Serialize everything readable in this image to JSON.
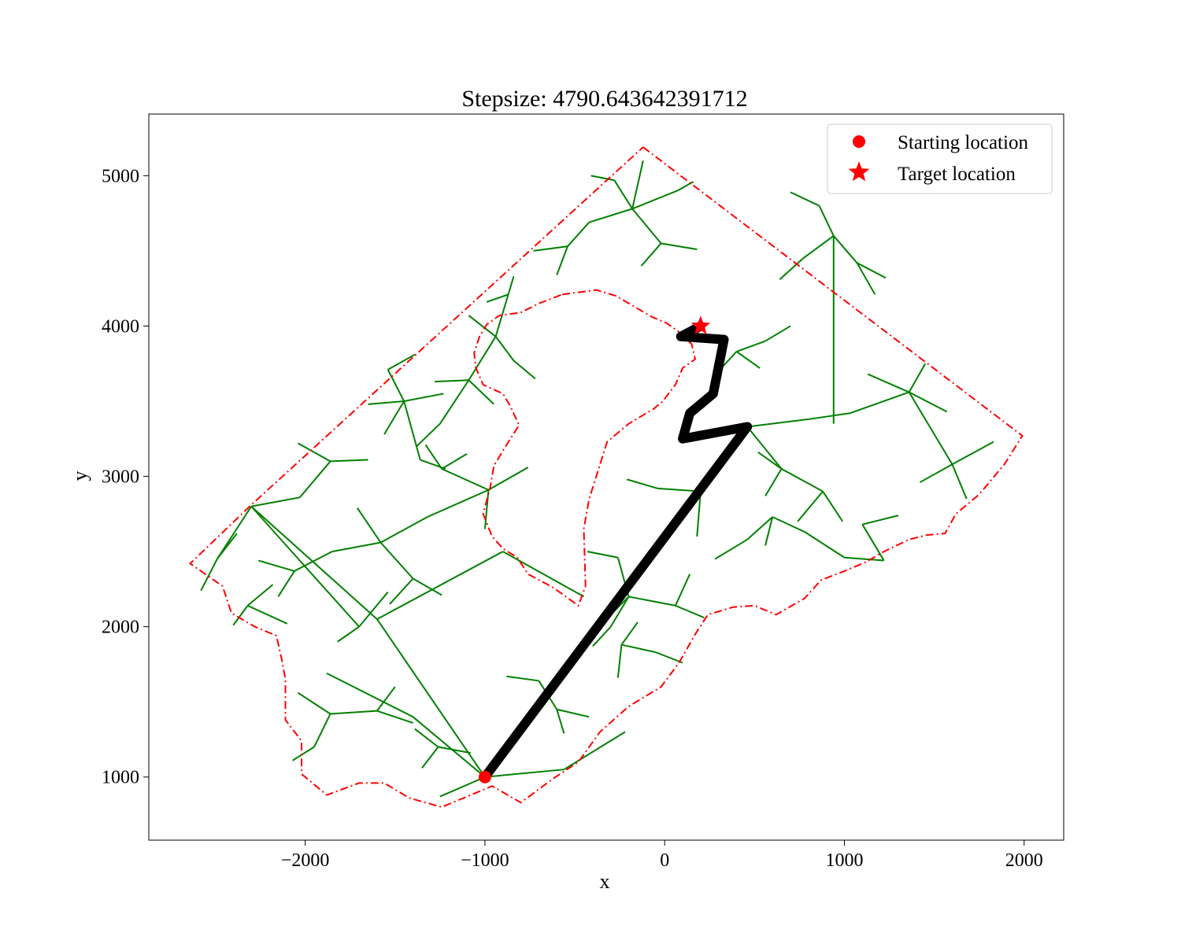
{
  "chart_data": {
    "type": "scatter",
    "title": "Stepsize: 4790.643642391712",
    "xlabel": "x",
    "ylabel": "y",
    "xlim": [
      -2870,
      2220
    ],
    "ylim": [
      580,
      5410
    ],
    "xticks": [
      -2000,
      -1000,
      0,
      1000,
      2000
    ],
    "yticks": [
      1000,
      2000,
      3000,
      4000,
      5000
    ],
    "xtick_labels": [
      "−2000",
      "−1000",
      "0",
      "1000",
      "2000"
    ],
    "ytick_labels": [
      "1000",
      "2000",
      "3000",
      "4000",
      "5000"
    ],
    "grid": false,
    "legend": {
      "placement": "top-right",
      "entries": [
        {
          "label": "Starting location",
          "marker": "circle",
          "color": "#ff0000"
        },
        {
          "label": "Target location",
          "marker": "star",
          "color": "#ff0000"
        }
      ]
    },
    "start": {
      "x": -1000,
      "y": 1000
    },
    "target": {
      "x": 200,
      "y": 4000
    },
    "colors": {
      "boundary": "#ff0000",
      "tree": "#008000",
      "path": "#000000",
      "marker": "#ff0000"
    },
    "boundary_outer": [
      [
        -120,
        5190
      ],
      [
        1990,
        3270
      ],
      [
        1890,
        3080
      ],
      [
        1750,
        2880
      ],
      [
        1620,
        2750
      ],
      [
        1560,
        2620
      ],
      [
        1460,
        2610
      ],
      [
        1360,
        2580
      ],
      [
        1220,
        2500
      ],
      [
        1120,
        2430
      ],
      [
        1000,
        2370
      ],
      [
        870,
        2310
      ],
      [
        780,
        2190
      ],
      [
        620,
        2080
      ],
      [
        500,
        2140
      ],
      [
        380,
        2130
      ],
      [
        240,
        2080
      ],
      [
        170,
        1950
      ],
      [
        80,
        1760
      ],
      [
        -20,
        1600
      ],
      [
        -200,
        1470
      ],
      [
        -360,
        1300
      ],
      [
        -480,
        1100
      ],
      [
        -620,
        990
      ],
      [
        -800,
        830
      ],
      [
        -960,
        940
      ],
      [
        -1240,
        800
      ],
      [
        -1420,
        860
      ],
      [
        -1560,
        960
      ],
      [
        -1700,
        960
      ],
      [
        -1880,
        880
      ],
      [
        -2020,
        1020
      ],
      [
        -2020,
        1240
      ],
      [
        -2110,
        1380
      ],
      [
        -2110,
        1650
      ],
      [
        -2130,
        1780
      ],
      [
        -2160,
        1940
      ],
      [
        -2280,
        2000
      ],
      [
        -2410,
        2090
      ],
      [
        -2460,
        2270
      ],
      [
        -2640,
        2420
      ],
      [
        -2300,
        2810
      ],
      [
        -120,
        5190
      ]
    ],
    "boundary_hole": [
      [
        -570,
        4210
      ],
      [
        -380,
        4240
      ],
      [
        -270,
        4200
      ],
      [
        -170,
        4130
      ],
      [
        -70,
        4060
      ],
      [
        10,
        4020
      ],
      [
        80,
        3960
      ],
      [
        150,
        3880
      ],
      [
        170,
        3780
      ],
      [
        100,
        3720
      ],
      [
        60,
        3610
      ],
      [
        -10,
        3500
      ],
      [
        -60,
        3450
      ],
      [
        -200,
        3350
      ],
      [
        -320,
        3230
      ],
      [
        -420,
        2850
      ],
      [
        -450,
        2650
      ],
      [
        -440,
        2270
      ],
      [
        -480,
        2140
      ],
      [
        -620,
        2260
      ],
      [
        -760,
        2350
      ],
      [
        -820,
        2460
      ],
      [
        -900,
        2520
      ],
      [
        -960,
        2600
      ],
      [
        -1010,
        2750
      ],
      [
        -970,
        2930
      ],
      [
        -950,
        3070
      ],
      [
        -890,
        3190
      ],
      [
        -810,
        3340
      ],
      [
        -860,
        3470
      ],
      [
        -900,
        3550
      ],
      [
        -1010,
        3610
      ],
      [
        -1050,
        3720
      ],
      [
        -1060,
        3820
      ],
      [
        -1030,
        3930
      ],
      [
        -990,
        4010
      ],
      [
        -920,
        4070
      ],
      [
        -800,
        4090
      ],
      [
        -700,
        4150
      ],
      [
        -570,
        4210
      ]
    ],
    "path": [
      [
        -1000,
        1000
      ],
      [
        460,
        3330
      ],
      [
        100,
        3250
      ],
      [
        140,
        3420
      ],
      [
        270,
        3550
      ],
      [
        330,
        3910
      ],
      [
        90,
        3930
      ],
      [
        200,
        4000
      ]
    ],
    "tree_edges": [
      [
        -1000,
        1000,
        -1600,
        2050
      ],
      [
        -1600,
        2050,
        -2300,
        2800
      ],
      [
        -1600,
        2050,
        -900,
        2500
      ],
      [
        -900,
        2500,
        -450,
        2200
      ],
      [
        -1000,
        1000,
        -1400,
        1400
      ],
      [
        -1400,
        1400,
        -1880,
        1690
      ],
      [
        -1000,
        1000,
        -560,
        1050
      ],
      [
        -560,
        1050,
        -220,
        1300
      ],
      [
        -1000,
        1000,
        -1250,
        870
      ],
      [
        -2300,
        2800,
        -1700,
        2000
      ],
      [
        -2300,
        2800,
        -2030,
        2860
      ],
      [
        -2030,
        2860,
        -1860,
        3100
      ],
      [
        -1860,
        3100,
        -1650,
        3110
      ],
      [
        -1860,
        3100,
        -2040,
        3220
      ],
      [
        -2300,
        2800,
        -2490,
        2450
      ],
      [
        -2490,
        2450,
        -2580,
        2240
      ],
      [
        -2490,
        2450,
        -2380,
        2620
      ],
      [
        -1580,
        2560,
        -1320,
        2730
      ],
      [
        -1320,
        2730,
        -980,
        2910
      ],
      [
        -980,
        2910,
        -1240,
        3050
      ],
      [
        -1240,
        3050,
        -1330,
        3210
      ],
      [
        -1240,
        3050,
        -1100,
        3150
      ],
      [
        -980,
        2910,
        -760,
        3060
      ],
      [
        -980,
        2910,
        -1000,
        2650
      ],
      [
        -1580,
        2560,
        -1710,
        2790
      ],
      [
        -1580,
        2560,
        -1400,
        2320
      ],
      [
        -1400,
        2320,
        -1240,
        2210
      ],
      [
        -1400,
        2320,
        -1530,
        2150
      ],
      [
        -1580,
        2560,
        -1850,
        2500
      ],
      [
        -1850,
        2500,
        -2060,
        2370
      ],
      [
        -2060,
        2370,
        -2150,
        2200
      ],
      [
        -2060,
        2370,
        -2260,
        2440
      ],
      [
        -1450,
        3500,
        -1360,
        3110
      ],
      [
        -1360,
        3110,
        -1220,
        3050
      ],
      [
        -1450,
        3500,
        -1650,
        3480
      ],
      [
        -1450,
        3500,
        -1230,
        3550
      ],
      [
        -1450,
        3500,
        -1540,
        3710
      ],
      [
        -1540,
        3710,
        -1390,
        3810
      ],
      [
        -1450,
        3500,
        -1560,
        3280
      ],
      [
        -940,
        3930,
        -870,
        4210
      ],
      [
        -870,
        4210,
        -840,
        4330
      ],
      [
        -870,
        4210,
        -990,
        4160
      ],
      [
        -940,
        3930,
        -840,
        3770
      ],
      [
        -840,
        3770,
        -720,
        3650
      ],
      [
        -940,
        3930,
        -1090,
        4070
      ],
      [
        -940,
        3930,
        -1090,
        3640
      ],
      [
        -1090,
        3640,
        -1280,
        3630
      ],
      [
        -1090,
        3640,
        -1250,
        3350
      ],
      [
        -1250,
        3350,
        -1380,
        3200
      ],
      [
        -1090,
        3640,
        -950,
        3480
      ],
      [
        -180,
        4780,
        -120,
        5100
      ],
      [
        -180,
        4780,
        -420,
        4690
      ],
      [
        -420,
        4690,
        -540,
        4530
      ],
      [
        -540,
        4530,
        -730,
        4500
      ],
      [
        -540,
        4530,
        -600,
        4340
      ],
      [
        -180,
        4780,
        -20,
        4550
      ],
      [
        -20,
        4550,
        180,
        4510
      ],
      [
        -20,
        4550,
        -130,
        4400
      ],
      [
        -180,
        4780,
        70,
        4900
      ],
      [
        70,
        4900,
        160,
        4960
      ],
      [
        -180,
        4780,
        -280,
        4970
      ],
      [
        -280,
        4970,
        -410,
        5000
      ],
      [
        940,
        4600,
        940,
        3350
      ],
      [
        940,
        4600,
        1070,
        4420
      ],
      [
        1070,
        4420,
        1230,
        4320
      ],
      [
        1070,
        4420,
        1170,
        4210
      ],
      [
        940,
        4600,
        770,
        4450
      ],
      [
        770,
        4450,
        640,
        4310
      ],
      [
        940,
        4600,
        860,
        4800
      ],
      [
        860,
        4800,
        700,
        4890
      ],
      [
        400,
        3830,
        300,
        3700
      ],
      [
        400,
        3830,
        560,
        3900
      ],
      [
        560,
        3900,
        700,
        4000
      ],
      [
        400,
        3830,
        530,
        3720
      ],
      [
        460,
        3330,
        800,
        3380
      ],
      [
        800,
        3380,
        1030,
        3420
      ],
      [
        1030,
        3420,
        1360,
        3560
      ],
      [
        1360,
        3560,
        1570,
        3430
      ],
      [
        1360,
        3560,
        1130,
        3680
      ],
      [
        1360,
        3560,
        1450,
        3750
      ],
      [
        1360,
        3560,
        1600,
        3080
      ],
      [
        1600,
        3080,
        1830,
        3230
      ],
      [
        1600,
        3080,
        1420,
        2960
      ],
      [
        1600,
        3080,
        1680,
        2850
      ],
      [
        460,
        3330,
        650,
        3050
      ],
      [
        650,
        3050,
        880,
        2900
      ],
      [
        880,
        2900,
        990,
        2700
      ],
      [
        880,
        2900,
        740,
        2700
      ],
      [
        650,
        3050,
        560,
        2870
      ],
      [
        650,
        3050,
        520,
        3160
      ],
      [
        460,
        3330,
        200,
        2900
      ],
      [
        200,
        2900,
        -40,
        2920
      ],
      [
        -40,
        2920,
        -210,
        2980
      ],
      [
        200,
        2900,
        180,
        2600
      ],
      [
        -200,
        2200,
        -300,
        2000
      ],
      [
        -300,
        2000,
        -400,
        1870
      ],
      [
        -200,
        2200,
        60,
        2140
      ],
      [
        60,
        2140,
        220,
        2060
      ],
      [
        60,
        2140,
        140,
        2350
      ],
      [
        -200,
        2200,
        -260,
        2460
      ],
      [
        -260,
        2460,
        -430,
        2500
      ],
      [
        -200,
        2200,
        -300,
        2080
      ],
      [
        -2320,
        2140,
        -2100,
        2020
      ],
      [
        -2320,
        2140,
        -2180,
        2280
      ],
      [
        -2320,
        2140,
        -2400,
        2010
      ],
      [
        -1860,
        1420,
        -1600,
        1440
      ],
      [
        -1600,
        1440,
        -1500,
        1600
      ],
      [
        -1600,
        1440,
        -1400,
        1360
      ],
      [
        -1860,
        1420,
        -1950,
        1200
      ],
      [
        -1950,
        1200,
        -2070,
        1110
      ],
      [
        -1860,
        1420,
        -2040,
        1560
      ],
      [
        -600,
        1450,
        -420,
        1400
      ],
      [
        -600,
        1450,
        -700,
        1640
      ],
      [
        -700,
        1640,
        -880,
        1670
      ],
      [
        -600,
        1450,
        -560,
        1290
      ],
      [
        -1260,
        1200,
        -1080,
        1160
      ],
      [
        -1260,
        1200,
        -1350,
        1060
      ],
      [
        -1260,
        1200,
        -1390,
        1320
      ],
      [
        -240,
        1880,
        -50,
        1830
      ],
      [
        -50,
        1830,
        100,
        1760
      ],
      [
        -240,
        1880,
        -260,
        1660
      ],
      [
        -240,
        1880,
        -150,
        2030
      ],
      [
        600,
        2730,
        560,
        2540
      ],
      [
        600,
        2730,
        780,
        2630
      ],
      [
        780,
        2630,
        1000,
        2460
      ],
      [
        600,
        2730,
        460,
        2580
      ],
      [
        460,
        2580,
        280,
        2450
      ],
      [
        1000,
        2460,
        1220,
        2440
      ],
      [
        1220,
        2440,
        1100,
        2680
      ],
      [
        1100,
        2680,
        1300,
        2740
      ],
      [
        -1700,
        2000,
        -1820,
        1900
      ],
      [
        -1700,
        2000,
        -1540,
        2230
      ]
    ]
  }
}
